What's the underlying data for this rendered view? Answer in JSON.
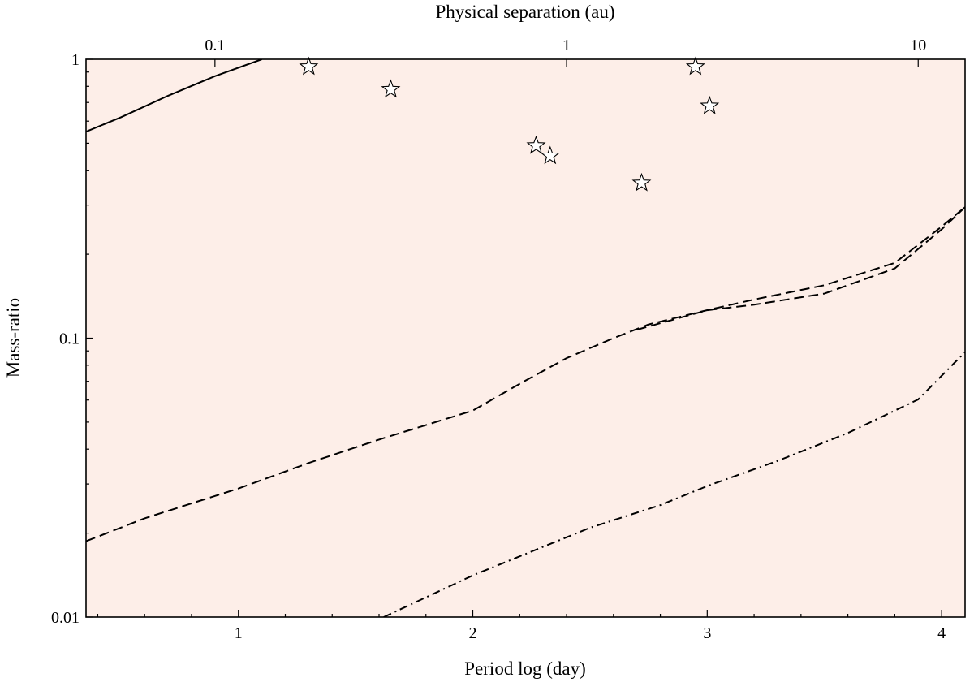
{
  "chart_data": {
    "type": "contour",
    "title": "",
    "xlabel": "Period log (day)",
    "ylabel": "Mass-ratio",
    "top_xlabel": "Physical separation (au)",
    "xlim": [
      0.35,
      4.1
    ],
    "ylim_log10": [
      -2,
      0
    ],
    "x_ticks": [
      {
        "value": 1,
        "label": "1"
      },
      {
        "value": 2,
        "label": "2"
      },
      {
        "value": 3,
        "label": "3"
      },
      {
        "value": 4,
        "label": "4"
      }
    ],
    "y_ticks": [
      {
        "value": 1,
        "label": "1"
      },
      {
        "value": 0.1,
        "label": "0.1"
      },
      {
        "value": 0.01,
        "label": "0.01"
      }
    ],
    "top_ticks": [
      {
        "period_log": 0.9,
        "label": "0.1"
      },
      {
        "period_log": 2.4,
        "label": "1"
      },
      {
        "period_log": 3.9,
        "label": "10"
      }
    ],
    "colormap": {
      "dark": "#7a0f14",
      "mid": "#e23a2a",
      "light": "#fdeee8",
      "levels": 26
    },
    "contour_lines": [
      {
        "name": "solid-contour",
        "style": "solid",
        "points": [
          [
            0.35,
            0.55
          ],
          [
            0.5,
            0.62
          ],
          [
            0.7,
            0.74
          ],
          [
            0.9,
            0.87
          ],
          [
            1.1,
            1.0
          ]
        ]
      },
      {
        "name": "dashed-upper-contour",
        "style": "dashed",
        "points": [
          [
            0.35,
            0.0187
          ],
          [
            0.6,
            0.0226
          ],
          [
            1.0,
            0.0289
          ],
          [
            1.3,
            0.0357
          ],
          [
            1.6,
            0.0433
          ],
          [
            2.0,
            0.055
          ],
          [
            2.2,
            0.0686
          ],
          [
            2.4,
            0.0848
          ],
          [
            2.6,
            0.1
          ],
          [
            2.75,
            0.112
          ],
          [
            3.0,
            0.126
          ],
          [
            3.2,
            0.1376
          ],
          [
            3.5,
            0.1548
          ],
          [
            3.8,
            0.1862
          ],
          [
            4.0,
            0.2512
          ],
          [
            4.1,
            0.2951
          ]
        ]
      },
      {
        "name": "dashed-lower-contour",
        "style": "dashed",
        "points": [
          [
            2.7,
            0.1072
          ],
          [
            3.0,
            0.1259
          ],
          [
            3.2,
            0.1318
          ],
          [
            3.5,
            0.1445
          ],
          [
            3.8,
            0.1778
          ],
          [
            4.0,
            0.2455
          ],
          [
            4.1,
            0.2951
          ]
        ]
      },
      {
        "name": "dashdot-contour",
        "style": "dashdot",
        "points": [
          [
            1.62,
            0.01
          ],
          [
            2.0,
            0.0141
          ],
          [
            2.5,
            0.0209
          ],
          [
            2.8,
            0.0252
          ],
          [
            3.0,
            0.0295
          ],
          [
            3.3,
            0.0363
          ],
          [
            3.6,
            0.0457
          ],
          [
            3.9,
            0.0603
          ],
          [
            4.1,
            0.0891
          ]
        ]
      }
    ],
    "stars": [
      {
        "x": 1.3,
        "y": 0.94
      },
      {
        "x": 1.65,
        "y": 0.78
      },
      {
        "x": 2.27,
        "y": 0.49
      },
      {
        "x": 2.33,
        "y": 0.45
      },
      {
        "x": 2.72,
        "y": 0.36
      },
      {
        "x": 2.95,
        "y": 0.94
      },
      {
        "x": 3.01,
        "y": 0.68
      }
    ]
  }
}
